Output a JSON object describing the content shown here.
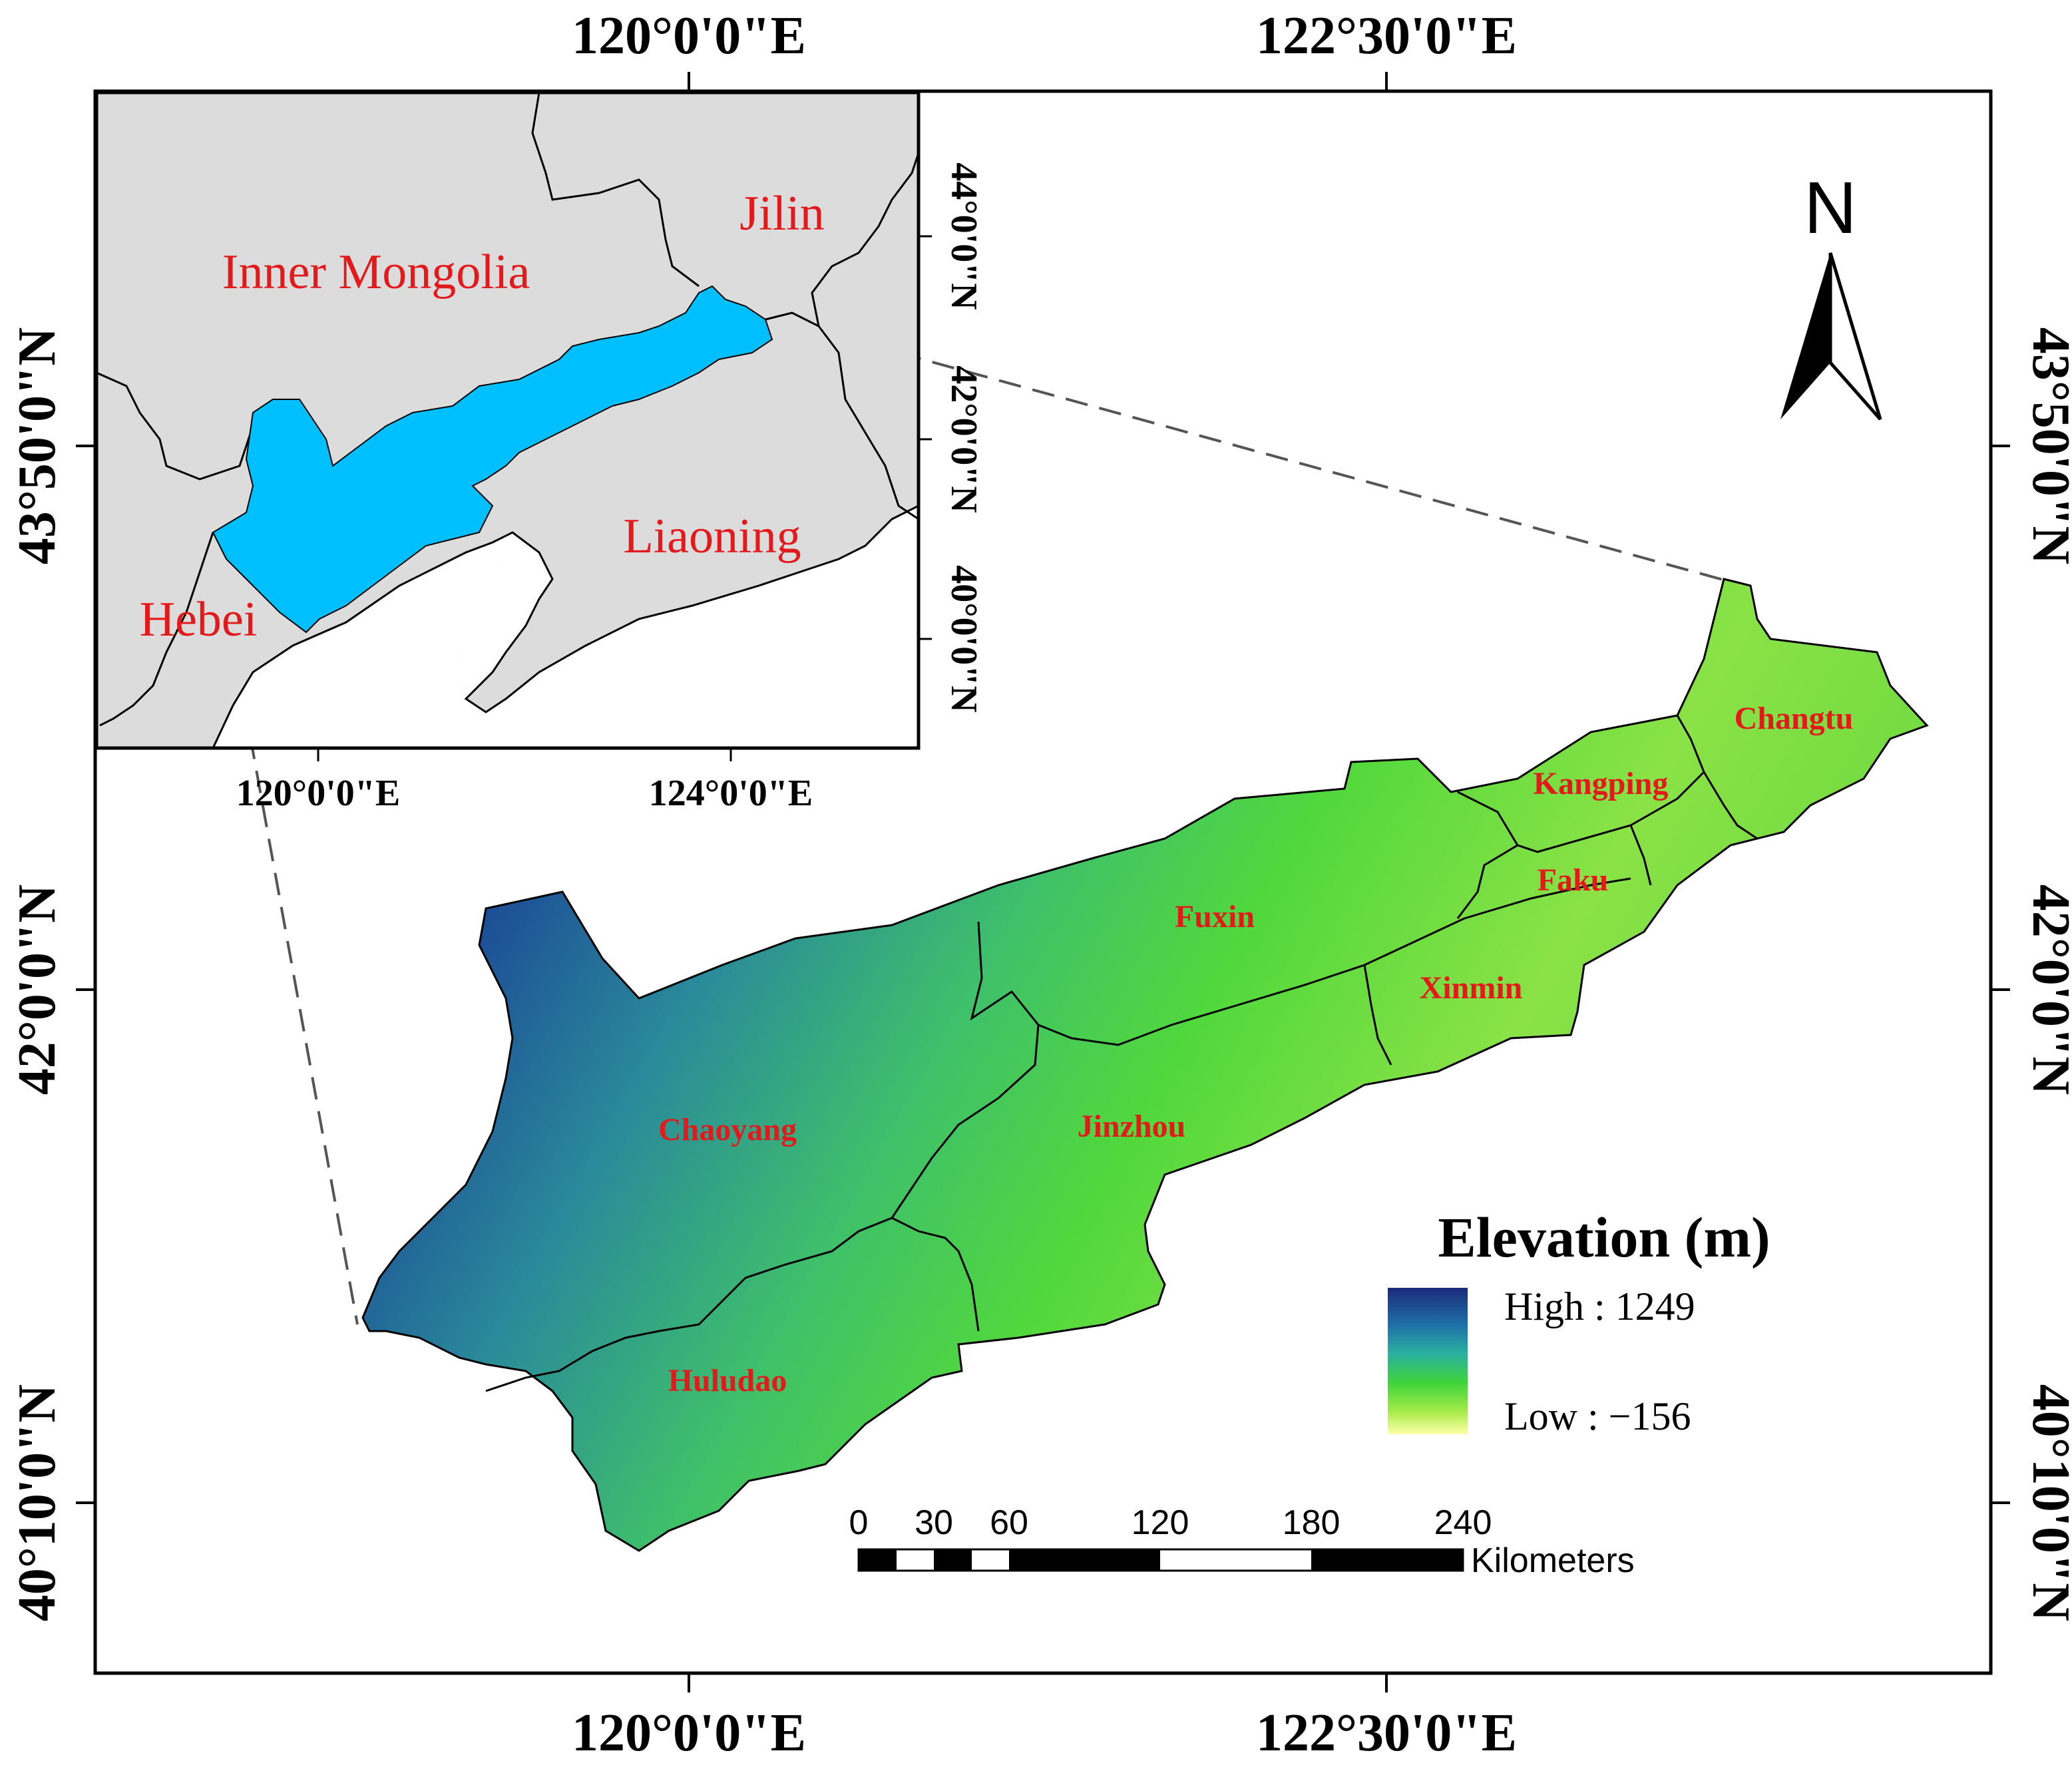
{
  "frame_labels": {
    "top": [
      "120°0'0\"E",
      "122°30'0\"E"
    ],
    "bottom": [
      "120°0'0\"E",
      "122°30'0\"E"
    ],
    "left": [
      "43°50'0\"N",
      "42°0'0\"N",
      "40°10'0\"N"
    ],
    "right": [
      "43°50'0\"N",
      "42°0'0\"N",
      "40°10'0\"N"
    ]
  },
  "inset": {
    "regions": [
      "Inner Mongolia",
      "Jilin",
      "Liaoning",
      "Hebei"
    ],
    "lon_labels": [
      "120°0'0\"E",
      "124°0'0\"E"
    ],
    "lat_labels": [
      "44°0'0\"N",
      "42°0'0\"N",
      "40°0'0\"N"
    ],
    "colors": {
      "land": "#dcdcdc",
      "study_area": "#00bfff",
      "label": "#e31a1c"
    }
  },
  "districts": [
    "Changtu",
    "Kangping",
    "Faku",
    "Fuxin",
    "Xinmin",
    "Chaoyang",
    "Jinzhou",
    "Huludao"
  ],
  "north_arrow": "N",
  "legend": {
    "title": "Elevation (m)",
    "high": "High : 1249",
    "low": "Low : −156",
    "ramp": [
      "#1a2a7a",
      "#1f6fa8",
      "#2ab0a0",
      "#3fd43a",
      "#a8ec4a",
      "#ffffa8"
    ]
  },
  "scale_bar": {
    "ticks": [
      "0",
      "30",
      "60",
      "120",
      "180",
      "240"
    ],
    "unit": "Kilometers"
  }
}
